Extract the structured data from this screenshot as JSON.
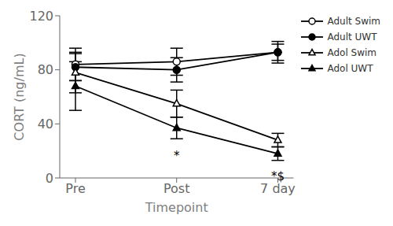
{
  "chart_data": {
    "type": "line",
    "categories": [
      "Pre",
      "Post",
      "7 day"
    ],
    "xlabel": "Timepoint",
    "ylabel": "CORT (ng/mL)",
    "ylim": [
      0,
      120
    ],
    "yticks": [
      0,
      40,
      80,
      120
    ],
    "grid": false,
    "legend": "right",
    "series": [
      {
        "name": "Adult Swim",
        "color": "#000000",
        "marker": "circle-open",
        "values": [
          84,
          86,
          93
        ],
        "errors": [
          12,
          10,
          8
        ]
      },
      {
        "name": "Adult UWT",
        "color": "#000000",
        "marker": "circle",
        "values": [
          82,
          80,
          93
        ],
        "errors": [
          10,
          9,
          6
        ]
      },
      {
        "name": "Adol Swim",
        "color": "#000000",
        "marker": "triangle-open",
        "values": [
          78,
          55,
          28
        ],
        "errors": [
          15,
          10,
          5
        ]
      },
      {
        "name": "Adol UWT",
        "color": "#000000",
        "marker": "triangle",
        "values": [
          68,
          37,
          18
        ],
        "errors": [
          18,
          8,
          5
        ]
      }
    ],
    "annotations": [
      {
        "text": "*",
        "x": "Post",
        "y": 22
      },
      {
        "text": "*$",
        "x": "7 day",
        "y": 7
      }
    ]
  }
}
